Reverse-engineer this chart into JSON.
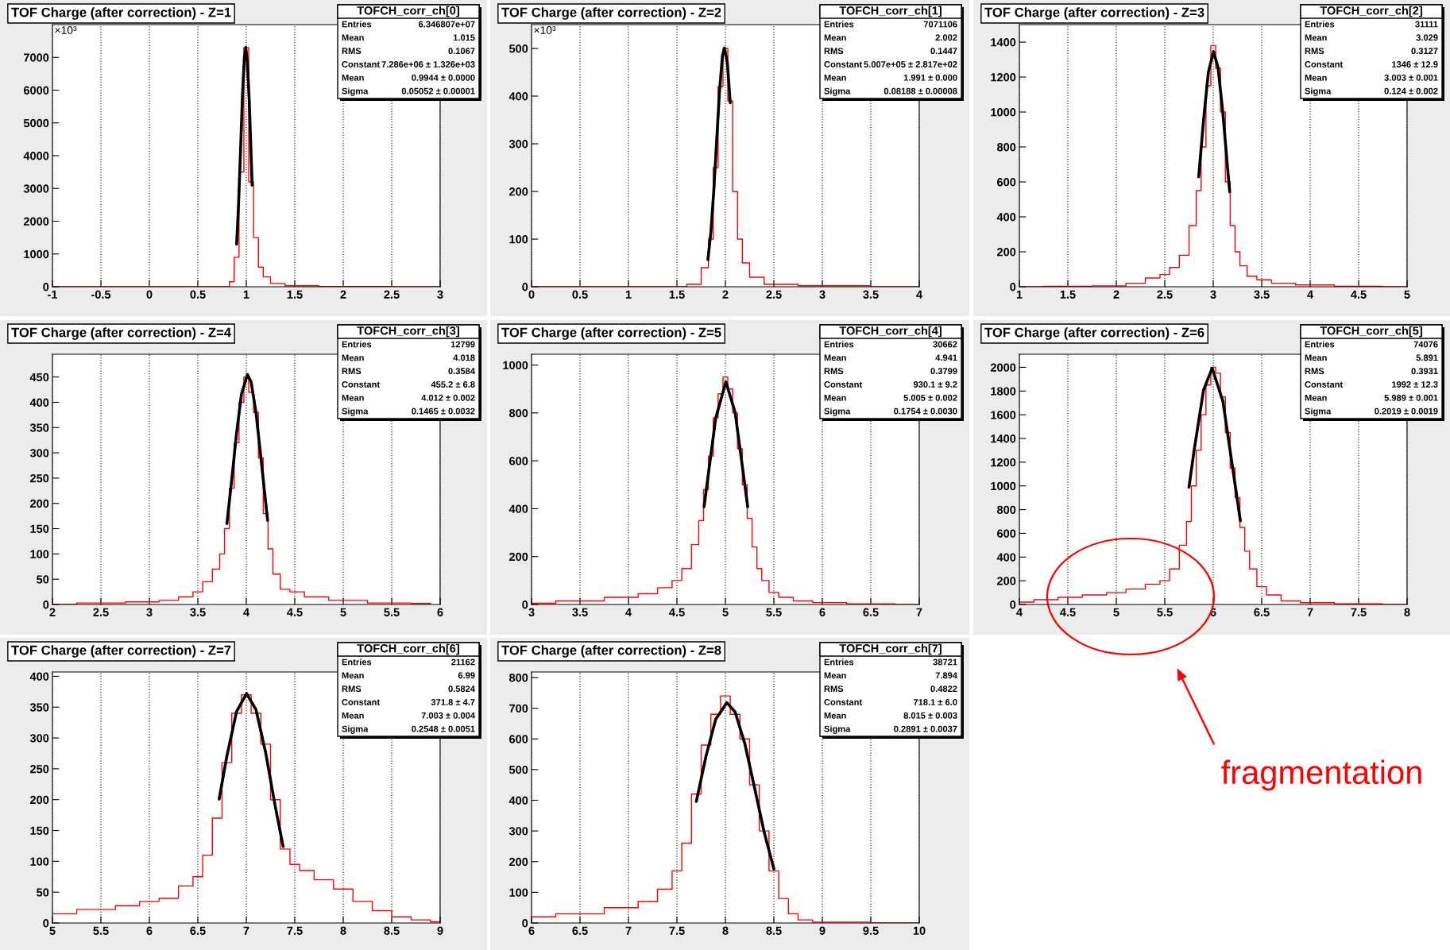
{
  "chart_data": [
    {
      "type": "step",
      "title": "TOF Charge (after correction) - Z=1",
      "grid": "x",
      "xlim": [
        -1,
        3
      ],
      "xticks": [
        -1,
        -0.5,
        0,
        0.5,
        1,
        1.5,
        2,
        2.5,
        3
      ],
      "ylim": [
        0,
        8000
      ],
      "yticks": [
        0,
        1000,
        2000,
        3000,
        4000,
        5000,
        6000,
        7000
      ],
      "annotations": [
        "TOFCH_corr_ch[0]",
        "Entries",
        "6.346807e+07",
        "Mean",
        "1.015",
        "RMS",
        "0.1067",
        "Constant",
        "7.286e+06 ± 1.326e+03",
        "Mean",
        "0.9944 ± 0.0000",
        "Sigma",
        "0.05052 ± 0.00001",
        "×10³"
      ],
      "series": [
        {
          "color": "#ff0000",
          "x": [
            -1,
            0.5,
            0.8,
            0.85,
            0.9,
            0.95,
            1.0,
            1.05,
            1.1,
            1.15,
            1.2,
            1.3,
            1.5,
            2,
            3
          ],
          "values": [
            0,
            0,
            0,
            150,
            900,
            3500,
            7300,
            3200,
            1500,
            600,
            300,
            100,
            30,
            5,
            0
          ]
        },
        {
          "type": "line",
          "color": "#000000",
          "x": [
            0.9,
            0.92,
            0.94,
            0.96,
            0.98,
            0.9944,
            1.01,
            1.03,
            1.05,
            1.06
          ],
          "values": [
            1300,
            2500,
            4100,
            5800,
            7000,
            7300,
            6900,
            5700,
            4000,
            3100
          ]
        }
      ]
    },
    {
      "type": "step",
      "title": "TOF Charge (after correction) - Z=2",
      "grid": "x",
      "xlim": [
        0,
        4
      ],
      "xticks": [
        0,
        0.5,
        1,
        1.5,
        2,
        2.5,
        3,
        3.5,
        4
      ],
      "ylim": [
        0,
        550
      ],
      "yticks": [
        0,
        100,
        200,
        300,
        400,
        500
      ],
      "annotations": [
        "TOFCH_corr_ch[1]",
        "Entries",
        "7071106",
        "Mean",
        "2.002",
        "RMS",
        "0.1447",
        "Constant",
        "5.007e+05 ± 2.817e+02",
        "Mean",
        "1.991 ± 0.000",
        "Sigma",
        "0.08188 ± 0.00008",
        "×10³"
      ],
      "series": [
        {
          "color": "#ff0000",
          "x": [
            0,
            1.5,
            1.7,
            1.8,
            1.85,
            1.9,
            1.95,
            2.0,
            2.05,
            2.1,
            2.15,
            2.2,
            2.3,
            2.5,
            3,
            4
          ],
          "values": [
            0,
            0,
            5,
            40,
            100,
            250,
            420,
            500,
            390,
            200,
            100,
            50,
            20,
            5,
            2,
            0
          ]
        },
        {
          "type": "line",
          "color": "#000000",
          "x": [
            1.82,
            1.85,
            1.88,
            1.91,
            1.94,
            1.97,
            1.991,
            2.02,
            2.05
          ],
          "values": [
            57,
            114,
            200,
            307,
            412,
            485,
            501,
            470,
            386
          ]
        }
      ]
    },
    {
      "type": "step",
      "title": "TOF Charge (after correction) - Z=3",
      "grid": "x",
      "xlim": [
        1,
        5
      ],
      "xticks": [
        1,
        1.5,
        2,
        2.5,
        3,
        3.5,
        4,
        4.5,
        5
      ],
      "ylim": [
        0,
        1500
      ],
      "yticks": [
        0,
        200,
        400,
        600,
        800,
        1000,
        1200,
        1400
      ],
      "annotations": [
        "TOFCH_corr_ch[2]",
        "Entries",
        "31111",
        "Mean",
        "3.029",
        "RMS",
        "0.3127",
        "Constant",
        "1346 ± 12.9",
        "Mean",
        "3.003 ± 0.001",
        "Sigma",
        "0.124 ± 0.002"
      ],
      "series": [
        {
          "color": "#ff0000",
          "x": [
            1,
            1.5,
            2,
            2.2,
            2.4,
            2.5,
            2.6,
            2.7,
            2.8,
            2.85,
            2.9,
            2.95,
            3.0,
            3.05,
            3.1,
            3.15,
            3.2,
            3.25,
            3.3,
            3.4,
            3.5,
            3.7,
            4,
            4.5,
            5
          ],
          "values": [
            0,
            2,
            5,
            20,
            50,
            70,
            110,
            180,
            350,
            550,
            800,
            1150,
            1380,
            1250,
            1000,
            600,
            350,
            200,
            120,
            60,
            40,
            20,
            10,
            3,
            0
          ]
        },
        {
          "type": "line",
          "color": "#000000",
          "x": [
            2.85,
            2.9,
            2.95,
            3.003,
            3.05,
            3.1,
            3.15,
            3.17
          ],
          "values": [
            629,
            953,
            1229,
            1346,
            1253,
            991,
            667,
            543
          ]
        }
      ]
    },
    {
      "type": "step",
      "title": "TOF Charge (after correction) - Z=4",
      "grid": "x",
      "xlim": [
        2,
        6
      ],
      "xticks": [
        2,
        2.5,
        3,
        3.5,
        4,
        4.5,
        5,
        5.5,
        6
      ],
      "ylim": [
        0,
        495
      ],
      "yticks": [
        0,
        50,
        100,
        150,
        200,
        250,
        300,
        350,
        400,
        450
      ],
      "annotations": [
        "TOFCH_corr_ch[3]",
        "Entries",
        "12799",
        "Mean",
        "4.018",
        "RMS",
        "0.3584",
        "Constant",
        "455.2 ± 6.8",
        "Mean",
        "4.012 ± 0.002",
        "Sigma",
        "0.1465 ± 0.0032"
      ],
      "series": [
        {
          "color": "#ff0000",
          "x": [
            2,
            2.5,
            3,
            3.2,
            3.4,
            3.5,
            3.6,
            3.7,
            3.75,
            3.8,
            3.85,
            3.9,
            3.95,
            4.0,
            4.05,
            4.1,
            4.15,
            4.2,
            4.25,
            4.3,
            4.4,
            4.5,
            4.7,
            5,
            5.5,
            5.9
          ],
          "values": [
            0,
            3,
            5,
            8,
            15,
            25,
            45,
            70,
            100,
            150,
            230,
            320,
            400,
            450,
            420,
            380,
            290,
            180,
            110,
            60,
            30,
            25,
            15,
            8,
            3,
            2
          ]
        },
        {
          "type": "line",
          "color": "#000000",
          "x": [
            3.8,
            3.85,
            3.9,
            3.95,
            4.012,
            4.05,
            4.1,
            4.15,
            4.22
          ],
          "values": [
            160,
            247,
            340,
            416,
            455,
            440,
            380,
            292,
            166
          ]
        }
      ]
    },
    {
      "type": "step",
      "title": "TOF Charge (after correction) - Z=5",
      "grid": "x",
      "xlim": [
        3,
        7
      ],
      "xticks": [
        3,
        3.5,
        4,
        4.5,
        5,
        5.5,
        6,
        6.5,
        7
      ],
      "ylim": [
        0,
        1045
      ],
      "yticks": [
        0,
        200,
        400,
        600,
        800,
        1000
      ],
      "annotations": [
        "TOFCH_corr_ch[4]",
        "Entries",
        "30662",
        "Mean",
        "4.941",
        "RMS",
        "0.3799",
        "Constant",
        "930.1 ± 9.2",
        "Mean",
        "5.005 ± 0.002",
        "Sigma",
        "0.1754 ± 0.0030"
      ],
      "series": [
        {
          "color": "#ff0000",
          "x": [
            3,
            3.5,
            4,
            4.2,
            4.4,
            4.5,
            4.6,
            4.7,
            4.75,
            4.8,
            4.85,
            4.9,
            4.95,
            5.0,
            5.05,
            5.1,
            5.15,
            5.2,
            5.25,
            5.3,
            5.35,
            5.4,
            5.5,
            5.6,
            5.8,
            6,
            6.5,
            7
          ],
          "values": [
            5,
            15,
            30,
            45,
            70,
            100,
            150,
            250,
            350,
            480,
            620,
            780,
            880,
            950,
            900,
            800,
            650,
            500,
            360,
            240,
            150,
            100,
            50,
            30,
            15,
            8,
            3,
            0
          ]
        },
        {
          "type": "line",
          "color": "#000000",
          "x": [
            4.78,
            4.8,
            4.9,
            5.005,
            5.1,
            5.2,
            5.23
          ],
          "values": [
            408,
            470,
            778,
            930,
            803,
            501,
            408
          ]
        }
      ]
    },
    {
      "type": "step",
      "title": "TOF Charge (after correction) - Z=6",
      "grid": "x",
      "xlim": [
        4,
        8
      ],
      "xticks": [
        4,
        4.5,
        5,
        5.5,
        6,
        6.5,
        7,
        7.5,
        8
      ],
      "ylim": [
        0,
        2110
      ],
      "yticks": [
        0,
        200,
        400,
        600,
        800,
        1000,
        1200,
        1400,
        1600,
        1800,
        2000
      ],
      "annotations": [
        "TOFCH_corr_ch[5]",
        "Entries",
        "74076",
        "Mean",
        "5.891",
        "RMS",
        "0.3931",
        "Constant",
        "1992 ± 12.3",
        "Mean",
        "5.989 ± 0.001",
        "Sigma",
        "0.2019 ± 0.0019"
      ],
      "series": [
        {
          "color": "#ff0000",
          "x": [
            4,
            4.3,
            4.5,
            4.8,
            5.0,
            5.2,
            5.4,
            5.5,
            5.6,
            5.7,
            5.75,
            5.8,
            5.85,
            5.9,
            5.95,
            6.0,
            6.05,
            6.1,
            6.15,
            6.2,
            6.25,
            6.3,
            6.35,
            6.4,
            6.5,
            6.6,
            6.8,
            7,
            7.5,
            8
          ],
          "values": [
            20,
            40,
            60,
            80,
            100,
            130,
            170,
            200,
            300,
            500,
            700,
            1000,
            1300,
            1600,
            1850,
            2000,
            1950,
            1750,
            1450,
            1150,
            900,
            650,
            450,
            300,
            150,
            80,
            30,
            15,
            5,
            0
          ]
        },
        {
          "type": "line",
          "color": "#000000",
          "x": [
            5.75,
            5.8,
            5.9,
            5.989,
            6.1,
            6.2,
            6.28
          ],
          "values": [
            989,
            1285,
            1808,
            1992,
            1713,
            1154,
            705
          ]
        }
      ]
    },
    {
      "type": "step",
      "title": "TOF Charge (after correction) - Z=7",
      "grid": "x",
      "xlim": [
        5,
        9
      ],
      "xticks": [
        5,
        5.5,
        6,
        6.5,
        7,
        7.5,
        8,
        8.5,
        9
      ],
      "ylim": [
        0,
        407
      ],
      "yticks": [
        0,
        50,
        100,
        150,
        200,
        250,
        300,
        350,
        400
      ],
      "annotations": [
        "TOFCH_corr_ch[6]",
        "Entries",
        "21162",
        "Mean",
        "6.99",
        "RMS",
        "0.5824",
        "Constant",
        "371.8 ± 4.7",
        "Mean",
        "7.003 ± 0.004",
        "Sigma",
        "0.2548 ± 0.0051"
      ],
      "series": [
        {
          "color": "#ff0000",
          "x": [
            5,
            5.5,
            5.8,
            6,
            6.2,
            6.4,
            6.5,
            6.6,
            6.7,
            6.8,
            6.9,
            7.0,
            7.1,
            7.2,
            7.3,
            7.4,
            7.5,
            7.6,
            7.8,
            8.0,
            8.2,
            8.4,
            8.6,
            8.8,
            9
          ],
          "values": [
            15,
            22,
            28,
            35,
            40,
            60,
            75,
            110,
            170,
            260,
            340,
            370,
            340,
            290,
            200,
            120,
            95,
            85,
            70,
            55,
            35,
            20,
            10,
            5,
            2
          ]
        },
        {
          "type": "line",
          "color": "#000000",
          "x": [
            6.72,
            6.8,
            6.9,
            7.003,
            7.1,
            7.2,
            7.3,
            7.38
          ],
          "values": [
            201,
            271,
            343,
            372,
            346,
            276,
            188,
            124
          ]
        }
      ]
    },
    {
      "type": "step",
      "title": "TOF Charge (after correction) - Z=8",
      "grid": "x",
      "xlim": [
        6,
        10
      ],
      "xticks": [
        6,
        6.5,
        7,
        7.5,
        8,
        8.5,
        9,
        9.5,
        10
      ],
      "ylim": [
        0,
        818
      ],
      "yticks": [
        0,
        100,
        200,
        300,
        400,
        500,
        600,
        700,
        800
      ],
      "annotations": [
        "TOFCH_corr_ch[7]",
        "Entries",
        "38721",
        "Mean",
        "7.894",
        "RMS",
        "0.4822",
        "Constant",
        "718.1 ± 6.0",
        "Mean",
        "8.015 ± 0.003",
        "Sigma",
        "0.2891 ± 0.0037"
      ],
      "series": [
        {
          "color": "#ff0000",
          "x": [
            6,
            6.5,
            7,
            7.2,
            7.4,
            7.5,
            7.6,
            7.7,
            7.8,
            7.9,
            8.0,
            8.1,
            8.2,
            8.3,
            8.4,
            8.5,
            8.6,
            8.7,
            8.8,
            9,
            10
          ],
          "values": [
            20,
            30,
            50,
            70,
            110,
            170,
            260,
            420,
            580,
            680,
            740,
            680,
            600,
            450,
            300,
            170,
            80,
            30,
            10,
            3,
            0
          ]
        },
        {
          "type": "line",
          "color": "#000000",
          "x": [
            7.7,
            7.8,
            7.9,
            8.015,
            8.1,
            8.2,
            8.3,
            8.4,
            8.5
          ],
          "values": [
            396,
            544,
            664,
            718,
            688,
            585,
            442,
            296,
            176
          ]
        }
      ]
    },
    {
      "type": "other",
      "annotations": [
        "fragmentation"
      ]
    }
  ]
}
